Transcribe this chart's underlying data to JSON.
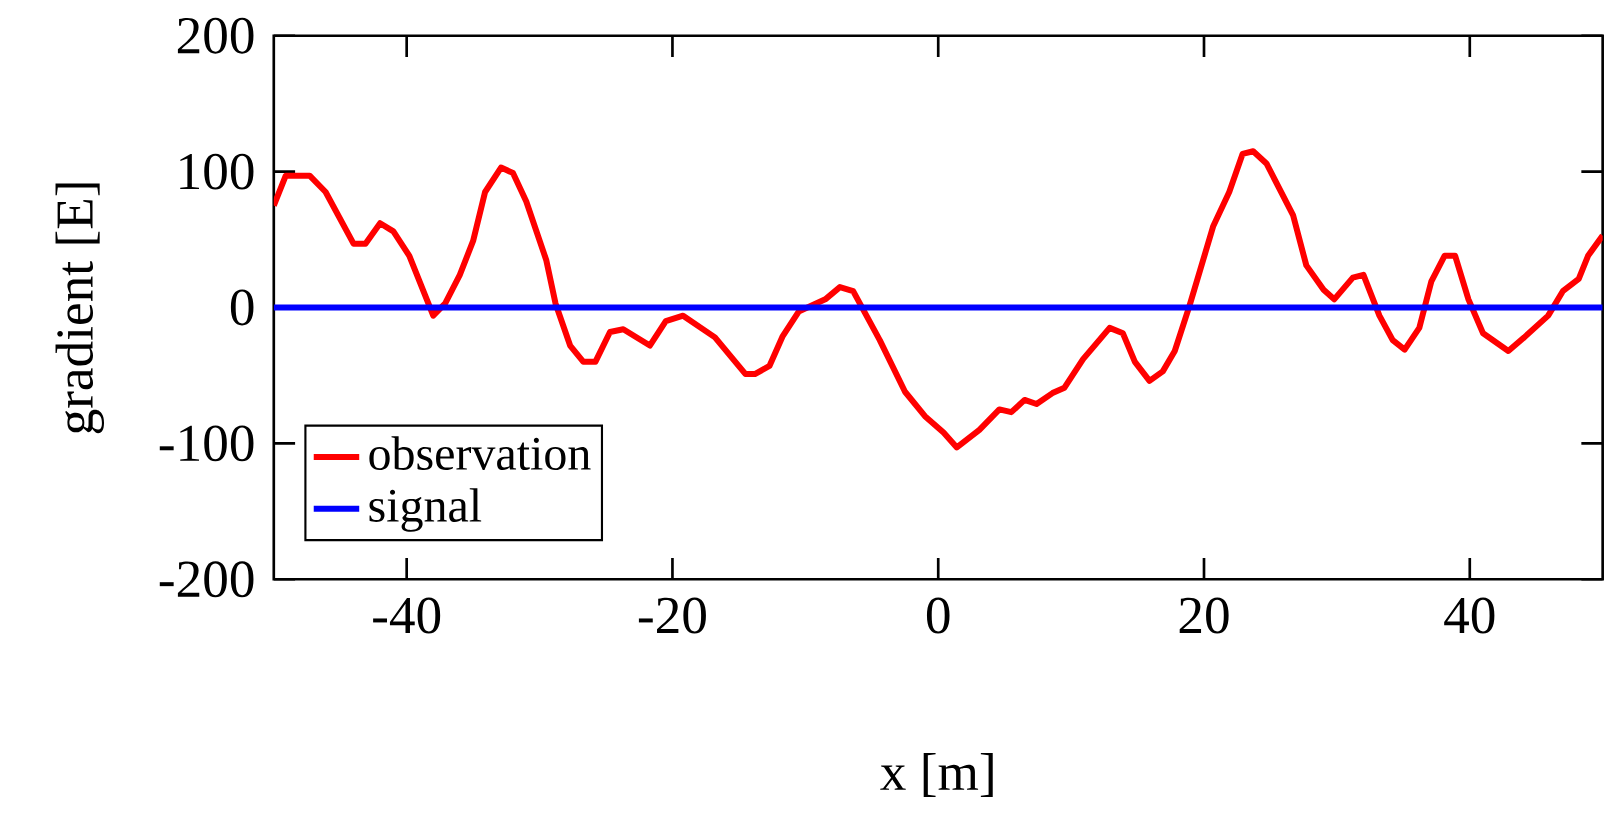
{
  "chart_data": {
    "type": "line",
    "xlabel": "x [m]",
    "ylabel": "gradient [E]",
    "xlim": [
      -50,
      50
    ],
    "ylim": [
      -200,
      200
    ],
    "xticks": [
      -40,
      -20,
      0,
      20,
      40
    ],
    "yticks": [
      -200,
      -100,
      0,
      100,
      200
    ],
    "grid": false,
    "legend": "bottom left",
    "marker": "none",
    "line_style": "solid",
    "series": [
      {
        "name": "observation",
        "color": "#ff0000",
        "x": [
          -50,
          -49.1,
          -47.3,
          -46.1,
          -44,
          -43.1,
          -42,
          -41,
          -39.8,
          -38,
          -37.1,
          -36,
          -35,
          -34.1,
          -32.9,
          -32,
          -31,
          -29.5,
          -28.8,
          -27.7,
          -26.7,
          -25.8,
          -24.7,
          -23.7,
          -21.7,
          -20.5,
          -19.2,
          -16.8,
          -14.5,
          -13.8,
          -12.7,
          -11.7,
          -10.5,
          -8.5,
          -7.4,
          -6.4,
          -4.4,
          -2.5,
          -1,
          0.4,
          1.4,
          3.1,
          4.6,
          5.5,
          6.5,
          7.4,
          8.6,
          9.5,
          10.9,
          12.9,
          13.9,
          14.8,
          15.9,
          16.9,
          17.8,
          18.9,
          20.7,
          21.9,
          22.9,
          23.7,
          24.7,
          26.7,
          27.7,
          29,
          29.8,
          31.2,
          32,
          33.2,
          34.2,
          35.1,
          36.2,
          37.1,
          38.1,
          38.9,
          39.9,
          41,
          42.9,
          44.1,
          45.9,
          47,
          48.2,
          48.9,
          50
        ],
        "values": [
          75,
          97,
          97,
          85,
          47,
          47,
          62,
          56,
          38,
          -6,
          3,
          24,
          49,
          85,
          103,
          99,
          78,
          35,
          3,
          -28,
          -40,
          -40,
          -18,
          -16,
          -28,
          -10,
          -6,
          -22,
          -49,
          -49,
          -43,
          -21,
          -3,
          6,
          15,
          12,
          -24,
          -62,
          -80,
          -92,
          -103,
          -90,
          -75,
          -77,
          -68,
          -71,
          -63,
          -59,
          -38,
          -15,
          -19,
          -40,
          -54,
          -47,
          -32,
          1,
          60,
          85,
          113,
          115,
          106,
          68,
          31,
          13,
          6,
          22,
          24,
          -6,
          -24,
          -31,
          -15,
          19,
          38,
          38,
          6,
          -19,
          -32,
          -22,
          -6,
          12,
          21,
          38,
          53
        ]
      },
      {
        "name": "signal",
        "color": "#0000ff",
        "x": [
          -50,
          50
        ],
        "values": [
          0,
          0
        ]
      }
    ]
  }
}
